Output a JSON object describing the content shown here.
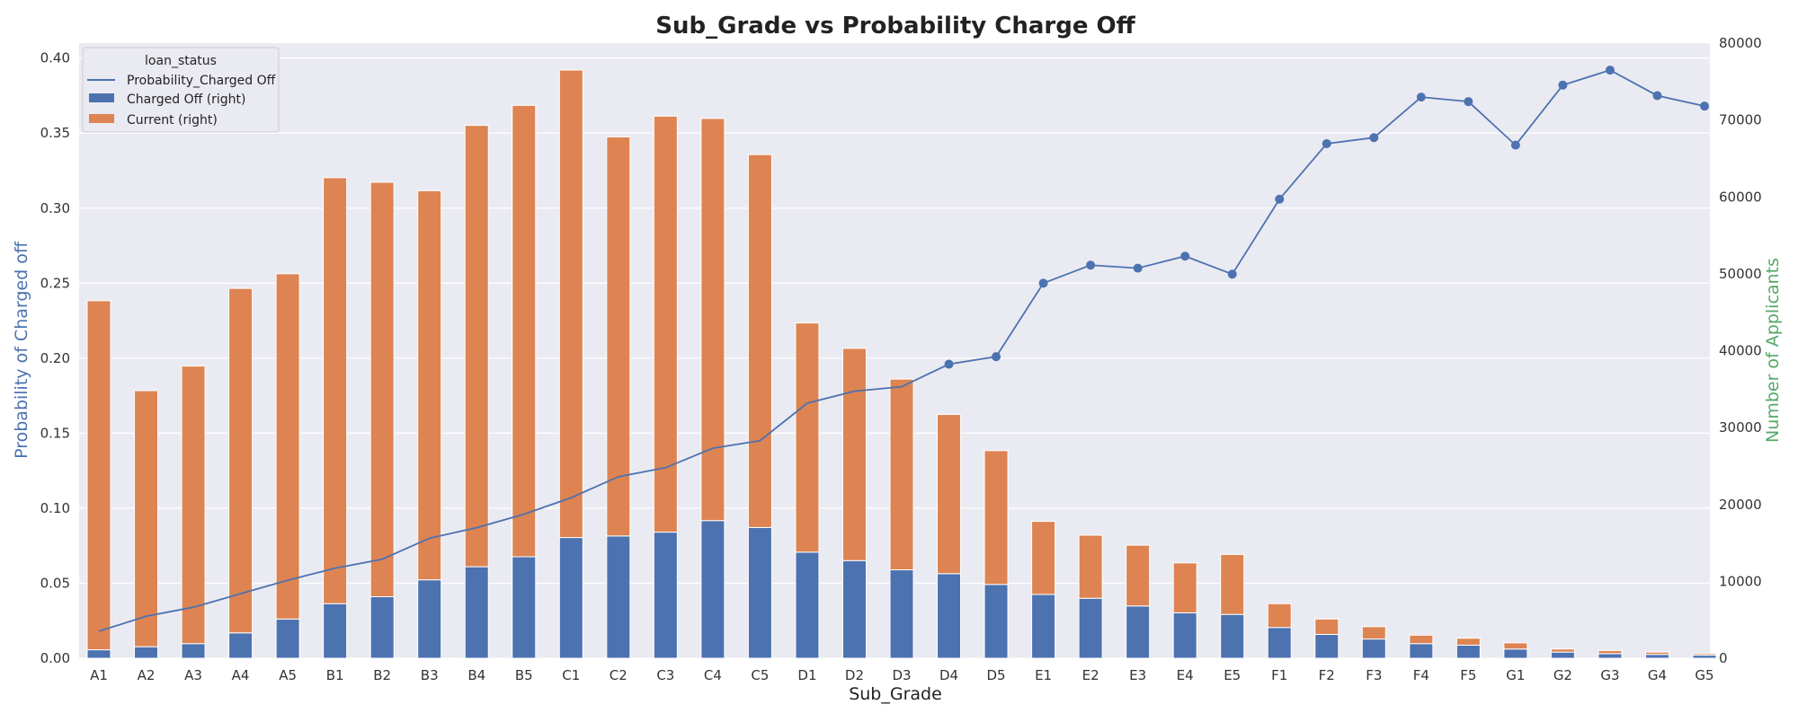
{
  "chart_data": {
    "type": "bar+line",
    "title": "Sub_Grade vs Probability Charge Off",
    "xlabel": "Sub_Grade",
    "ylabel_left": "Probability of Charged off",
    "ylabel_right": "Number of Applicants",
    "ylim_left": [
      0,
      0.41
    ],
    "ylim_right": [
      0,
      80000
    ],
    "yticks_left": [
      "0.00",
      "0.05",
      "0.10",
      "0.15",
      "0.20",
      "0.25",
      "0.30",
      "0.35",
      "0.40"
    ],
    "yticks_right": [
      "0",
      "10000",
      "20000",
      "30000",
      "40000",
      "50000",
      "60000",
      "70000",
      "80000"
    ],
    "categories": [
      "A1",
      "A2",
      "A3",
      "A4",
      "A5",
      "B1",
      "B2",
      "B3",
      "B4",
      "B5",
      "C1",
      "C2",
      "C3",
      "C4",
      "C5",
      "D1",
      "D2",
      "D3",
      "D4",
      "D5",
      "E1",
      "E2",
      "E3",
      "E4",
      "E5",
      "F1",
      "F2",
      "F3",
      "F4",
      "F5",
      "G1",
      "G2",
      "G3",
      "G4",
      "G5"
    ],
    "legend": {
      "title": "loan_status",
      "position": "top-left",
      "entries": [
        "Probability_Charged Off",
        "Charged Off (right)",
        "Current (right)"
      ]
    },
    "series": [
      {
        "name": "Probability_Charged Off",
        "axis": "left",
        "kind": "line",
        "color": "#4c72b0",
        "values": [
          0.018,
          0.028,
          0.034,
          0.043,
          0.052,
          0.06,
          0.066,
          0.08,
          0.087,
          0.096,
          0.107,
          0.121,
          0.127,
          0.14,
          0.145,
          0.17,
          0.178,
          0.181,
          0.196,
          0.201,
          0.25,
          0.262,
          0.26,
          0.268,
          0.256,
          0.306,
          0.343,
          0.347,
          0.374,
          0.371,
          0.342,
          0.382,
          0.392,
          0.375,
          0.368
        ]
      },
      {
        "name": "Charged Off (right)",
        "axis": "right",
        "kind": "bar-stacked",
        "color": "#4c72b0",
        "values": [
          1100,
          1500,
          1900,
          3300,
          5100,
          7100,
          8000,
          10200,
          11900,
          13200,
          15700,
          15900,
          16400,
          17900,
          17000,
          13800,
          12700,
          11500,
          11000,
          9600,
          8300,
          7800,
          6800,
          5900,
          5700,
          4000,
          3100,
          2500,
          1900,
          1700,
          1200,
          800,
          600,
          500,
          400
        ]
      },
      {
        "name": "Current (right)",
        "axis": "right",
        "kind": "bar-stacked",
        "color": "#dd8452",
        "values": [
          45400,
          33300,
          36100,
          44800,
          44900,
          55400,
          53900,
          50600,
          57400,
          58700,
          60800,
          51900,
          54100,
          52300,
          48500,
          29800,
          27600,
          24800,
          20700,
          17400,
          9500,
          8200,
          7900,
          6500,
          7800,
          3100,
          2000,
          1600,
          1100,
          900,
          800,
          400,
          400,
          300,
          200
        ]
      }
    ]
  }
}
